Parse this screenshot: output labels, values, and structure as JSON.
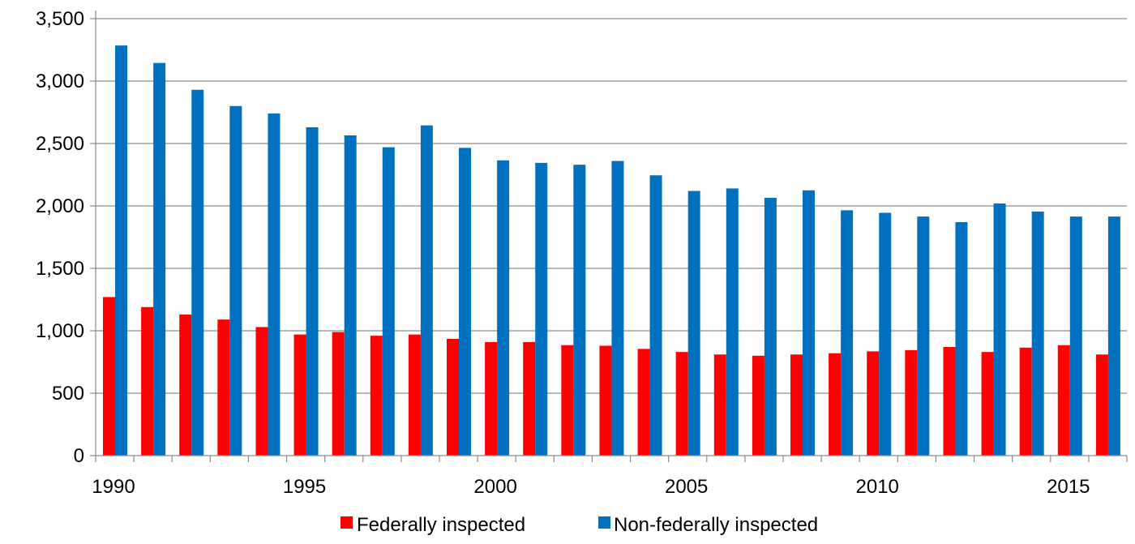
{
  "chart_data": {
    "type": "bar",
    "title": "",
    "xlabel": "",
    "ylabel": "",
    "ylim": [
      0,
      3500
    ],
    "yticks": [
      0,
      500,
      1000,
      1500,
      2000,
      2500,
      3000,
      3500
    ],
    "ytick_labels": [
      "0",
      "500",
      "1,000",
      "1,500",
      "2,000",
      "2,500",
      "3,000",
      "3,500"
    ],
    "categories": [
      1990,
      1991,
      1992,
      1993,
      1994,
      1995,
      1996,
      1997,
      1998,
      1999,
      2000,
      2001,
      2002,
      2003,
      2004,
      2005,
      2006,
      2007,
      2008,
      2009,
      2010,
      2011,
      2012,
      2013,
      2014,
      2015,
      2016
    ],
    "xtick_labels": [
      "1990",
      "1995",
      "2000",
      "2005",
      "2010",
      "2015"
    ],
    "grid": "horizontal",
    "legend_position": "bottom-center",
    "series": [
      {
        "name": "Federally inspected",
        "color": "#ff0000",
        "values": [
          1270,
          1190,
          1130,
          1090,
          1030,
          970,
          990,
          960,
          970,
          935,
          910,
          910,
          885,
          880,
          855,
          830,
          810,
          800,
          810,
          820,
          835,
          845,
          870,
          830,
          865,
          885,
          810
        ]
      },
      {
        "name": "Non-federally inspected",
        "color": "#0070c0",
        "values": [
          3285,
          3145,
          2930,
          2800,
          2740,
          2630,
          2565,
          2470,
          2645,
          2465,
          2365,
          2345,
          2330,
          2360,
          2245,
          2120,
          2140,
          2065,
          2125,
          1965,
          1945,
          1915,
          1870,
          2020,
          1955,
          1915,
          1915
        ]
      }
    ]
  }
}
